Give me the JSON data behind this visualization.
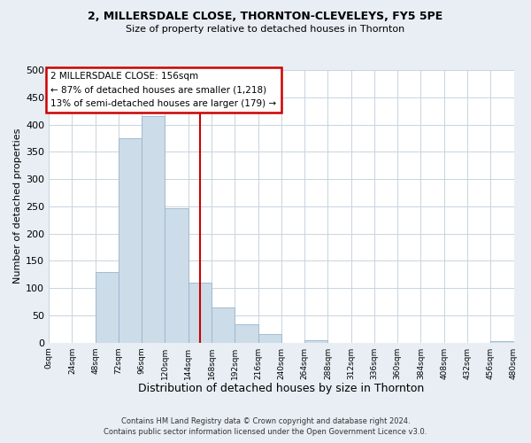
{
  "title_line1": "2, MILLERSDALE CLOSE, THORNTON-CLEVELEYS, FY5 5PE",
  "title_line2": "Size of property relative to detached houses in Thornton",
  "xlabel": "Distribution of detached houses by size in Thornton",
  "ylabel": "Number of detached properties",
  "footer_line1": "Contains HM Land Registry data © Crown copyright and database right 2024.",
  "footer_line2": "Contains public sector information licensed under the Open Government Licence v3.0.",
  "annotation_line1": "2 MILLERSDALE CLOSE: 156sqm",
  "annotation_line2": "← 87% of detached houses are smaller (1,218)",
  "annotation_line3": "13% of semi-detached houses are larger (179) →",
  "bar_color": "#ccdce8",
  "bar_edge_color": "#9ab4cc",
  "reference_line_x": 156,
  "reference_line_color": "#cc0000",
  "bin_edges": [
    0,
    24,
    48,
    72,
    96,
    120,
    144,
    168,
    192,
    216,
    240,
    264,
    288,
    312,
    336,
    360,
    384,
    408,
    432,
    456,
    480
  ],
  "bar_heights": [
    0,
    0,
    130,
    375,
    415,
    247,
    110,
    65,
    33,
    15,
    0,
    5,
    0,
    0,
    0,
    0,
    0,
    0,
    0,
    2
  ],
  "ylim": [
    0,
    500
  ],
  "yticks": [
    0,
    50,
    100,
    150,
    200,
    250,
    300,
    350,
    400,
    450,
    500
  ],
  "xtick_labels": [
    "0sqm",
    "24sqm",
    "48sqm",
    "72sqm",
    "96sqm",
    "120sqm",
    "144sqm",
    "168sqm",
    "192sqm",
    "216sqm",
    "240sqm",
    "264sqm",
    "288sqm",
    "312sqm",
    "336sqm",
    "360sqm",
    "384sqm",
    "408sqm",
    "432sqm",
    "456sqm",
    "480sqm"
  ],
  "background_color": "#e8eef4",
  "plot_background_color": "#ffffff",
  "grid_color": "#c8d4de",
  "annotation_box_edge_color": "#cc0000",
  "annotation_box_face_color": "#ffffff",
  "title_fontsize": 9,
  "subtitle_fontsize": 8,
  "ylabel_fontsize": 8,
  "xlabel_fontsize": 9
}
